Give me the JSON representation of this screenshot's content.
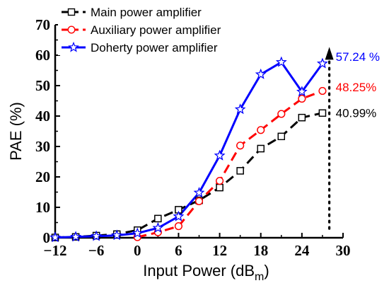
{
  "chart_data": {
    "type": "line",
    "title": "",
    "xlabel": "Input Power (dB",
    "xlabel_subscript": "m",
    "xlabel_close": ")",
    "ylabel": "PAE (%)",
    "xlim": [
      -12,
      30
    ],
    "ylim": [
      0,
      70
    ],
    "xticks": [
      -12,
      -6,
      0,
      6,
      12,
      18,
      24,
      30
    ],
    "xtick_labels": [
      "−12",
      "−6",
      "0",
      "6",
      "12",
      "18",
      "24",
      "30"
    ],
    "yticks": [
      0,
      10,
      20,
      30,
      40,
      50,
      60,
      70
    ],
    "ytick_labels": [
      "0",
      "10",
      "20",
      "30",
      "40",
      "50",
      "60",
      "70"
    ],
    "grid": false,
    "legend_position": "top-left",
    "series": [
      {
        "name": "Main power amplifier",
        "color": "#000000",
        "line_style": "dashed",
        "marker": "square",
        "x": [
          -12,
          -9,
          -6,
          -3,
          0,
          3,
          6,
          9,
          12,
          15,
          18,
          21,
          24,
          27
        ],
        "values": [
          0.1,
          0.3,
          0.7,
          1.2,
          2.5,
          6.3,
          9.2,
          12.3,
          16.5,
          22.0,
          29.3,
          33.3,
          39.5,
          40.99
        ]
      },
      {
        "name": "Auxiliary power amplifier",
        "color": "#ff0000",
        "line_style": "dashed",
        "marker": "circle",
        "x": [
          0,
          3,
          6,
          9,
          12,
          15,
          18,
          21,
          24,
          27
        ],
        "values": [
          0.2,
          1.8,
          3.8,
          12.0,
          18.7,
          30.3,
          35.4,
          40.7,
          45.7,
          48.25
        ]
      },
      {
        "name": "Doherty power amplifier",
        "color": "#0000ff",
        "line_style": "solid",
        "marker": "star",
        "x": [
          -12,
          -9,
          -6,
          -3,
          0,
          3,
          6,
          9,
          12,
          15,
          18,
          21,
          24,
          27
        ],
        "values": [
          0.1,
          0.3,
          0.5,
          0.8,
          1.5,
          3.2,
          7.0,
          14.8,
          27.0,
          42.2,
          53.7,
          57.7,
          48.0,
          57.24
        ]
      }
    ],
    "annotations": [
      {
        "text": "57.24 %",
        "color": "#0000ff",
        "at_y": 59.5
      },
      {
        "text": "48.25%",
        "color": "#ff0000",
        "at_y": 49.5
      },
      {
        "text": "40.99%",
        "color": "#000000",
        "at_y": 41.0
      }
    ],
    "arrow": {
      "x": 28,
      "from_y": 3,
      "to_y": 62,
      "style": "dotted",
      "color": "#000000"
    }
  }
}
